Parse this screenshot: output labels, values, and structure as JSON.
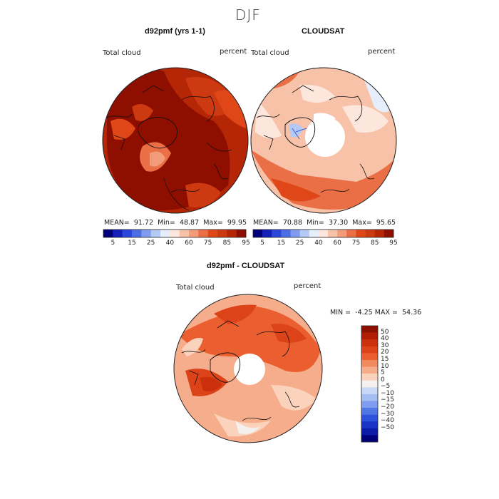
{
  "figure_title": "DJF",
  "panels": [
    {
      "title": "d92pmf (yrs 1-1)",
      "field_label": "Total cloud",
      "units": "percent",
      "mean_label": "MEAN=",
      "mean": "91.72",
      "min_label": "Min=",
      "min": "48.87",
      "max_label": "Max=",
      "max": "99.95"
    },
    {
      "title": "CLOUDSAT",
      "field_label": "Total cloud",
      "units": "percent",
      "mean_label": "MEAN=",
      "mean": "70.88",
      "min_label": "Min=",
      "min": "37.30",
      "max_label": "Max=",
      "max": "95.65"
    },
    {
      "title": "d92pmf - CLOUDSAT",
      "field_label": "Total cloud",
      "units": "percent",
      "min_label": "MIN =",
      "min": "-4.25",
      "max_label": "MAX =",
      "max": "54.36"
    }
  ],
  "colorbars": {
    "abs_ticks": [
      "5",
      "15",
      "25",
      "40",
      "60",
      "75",
      "85",
      "95"
    ],
    "abs_colors": [
      "#00007a",
      "#1520b8",
      "#2c48dc",
      "#4d6fe6",
      "#7f9cf0",
      "#b5c9f6",
      "#e6eefb",
      "#fde7dc",
      "#f8c2a8",
      "#f29c79",
      "#ea6f47",
      "#df4719",
      "#cd3a12",
      "#b52607",
      "#8e0e00"
    ],
    "diff_ticks": [
      "50",
      "40",
      "30",
      "20",
      "15",
      "10",
      "5",
      "0",
      "−5",
      "−10",
      "−15",
      "−20",
      "−30",
      "−40",
      "−50"
    ],
    "diff_colors": [
      "#8e0e00",
      "#b01d04",
      "#cb2f0b",
      "#dd4318",
      "#ea5e2f",
      "#f28a60",
      "#f6ad8c",
      "#fbd2bc",
      "#f3f0ee",
      "#c9d8f7",
      "#a4bdf2",
      "#7f9cf0",
      "#5076e6",
      "#2f52dc",
      "#1a34c8",
      "#0c1aa8",
      "#00007a"
    ]
  },
  "chart_data": {
    "type": "heatmap",
    "projection": "north polar stereographic",
    "season": "DJF",
    "variable": "Total cloud",
    "units": "percent",
    "maps": [
      {
        "name": "d92pmf (yrs 1-1)",
        "mean": 91.72,
        "min": 48.87,
        "max": 99.95,
        "contour_levels": [
          5,
          15,
          25,
          40,
          60,
          75,
          85,
          95
        ]
      },
      {
        "name": "CLOUDSAT",
        "mean": 70.88,
        "min": 37.3,
        "max": 95.65,
        "contour_levels": [
          5,
          15,
          25,
          40,
          60,
          75,
          85,
          95
        ]
      },
      {
        "name": "d92pmf - CLOUDSAT",
        "min": -4.25,
        "max": 54.36,
        "contour_levels": [
          -50,
          -40,
          -30,
          -20,
          -15,
          -10,
          -5,
          0,
          5,
          10,
          15,
          20,
          30,
          40,
          50
        ]
      }
    ]
  }
}
